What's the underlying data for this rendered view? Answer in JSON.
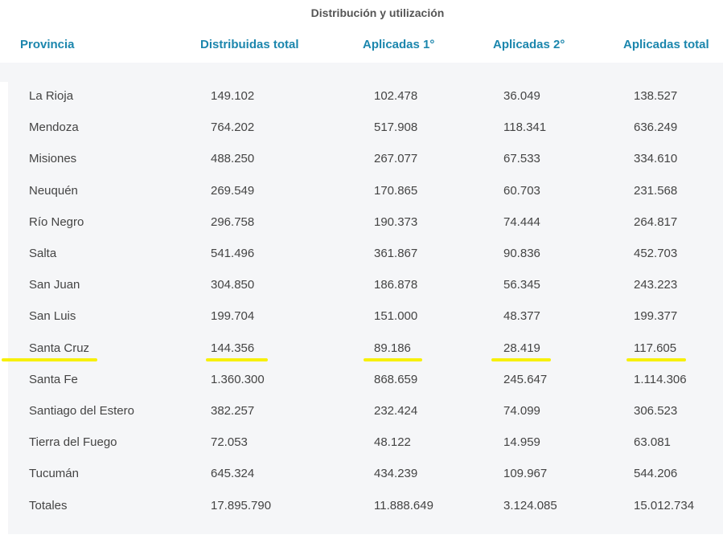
{
  "title": "Distribución y utilización",
  "columns": {
    "provincia": "Provincia",
    "distribuidas": "Distribuidas total",
    "aplicadas1": "Aplicadas 1°",
    "aplicadas2": "Aplicadas 2°",
    "aplicadas_total": "Aplicadas total"
  },
  "rows": [
    {
      "provincia": "La Rioja",
      "distribuidas": "149.102",
      "aplicadas1": "102.478",
      "aplicadas2": "36.049",
      "aplicadas_total": "138.527"
    },
    {
      "provincia": "Mendoza",
      "distribuidas": "764.202",
      "aplicadas1": "517.908",
      "aplicadas2": "118.341",
      "aplicadas_total": "636.249"
    },
    {
      "provincia": "Misiones",
      "distribuidas": "488.250",
      "aplicadas1": "267.077",
      "aplicadas2": "67.533",
      "aplicadas_total": "334.610"
    },
    {
      "provincia": "Neuquén",
      "distribuidas": "269.549",
      "aplicadas1": "170.865",
      "aplicadas2": "60.703",
      "aplicadas_total": "231.568"
    },
    {
      "provincia": "Río Negro",
      "distribuidas": "296.758",
      "aplicadas1": "190.373",
      "aplicadas2": "74.444",
      "aplicadas_total": "264.817"
    },
    {
      "provincia": "Salta",
      "distribuidas": "541.496",
      "aplicadas1": "361.867",
      "aplicadas2": "90.836",
      "aplicadas_total": "452.703"
    },
    {
      "provincia": "San Juan",
      "distribuidas": "304.850",
      "aplicadas1": "186.878",
      "aplicadas2": "56.345",
      "aplicadas_total": "243.223"
    },
    {
      "provincia": "San Luis",
      "distribuidas": "199.704",
      "aplicadas1": "151.000",
      "aplicadas2": "48.377",
      "aplicadas_total": "199.377"
    },
    {
      "provincia": "Santa Cruz",
      "distribuidas": "144.356",
      "aplicadas1": "89.186",
      "aplicadas2": "28.419",
      "aplicadas_total": "117.605",
      "highlighted": true
    },
    {
      "provincia": "Santa Fe",
      "distribuidas": "1.360.300",
      "aplicadas1": "868.659",
      "aplicadas2": "245.647",
      "aplicadas_total": "1.114.306"
    },
    {
      "provincia": "Santiago del Estero",
      "distribuidas": "382.257",
      "aplicadas1": "232.424",
      "aplicadas2": "74.099",
      "aplicadas_total": "306.523"
    },
    {
      "provincia": "Tierra del Fuego",
      "distribuidas": "72.053",
      "aplicadas1": "48.122",
      "aplicadas2": "14.959",
      "aplicadas_total": "63.081"
    },
    {
      "provincia": "Tucumán",
      "distribuidas": "645.324",
      "aplicadas1": "434.239",
      "aplicadas2": "109.967",
      "aplicadas_total": "544.206"
    },
    {
      "provincia": "Totales",
      "distribuidas": "17.895.790",
      "aplicadas1": "11.888.649",
      "aplicadas2": "3.124.085",
      "aplicadas_total": "15.012.734"
    }
  ],
  "colors": {
    "header_text": "#1b86ad",
    "table_bg": "#f5f6f8",
    "highlight": "#f7f00a"
  }
}
